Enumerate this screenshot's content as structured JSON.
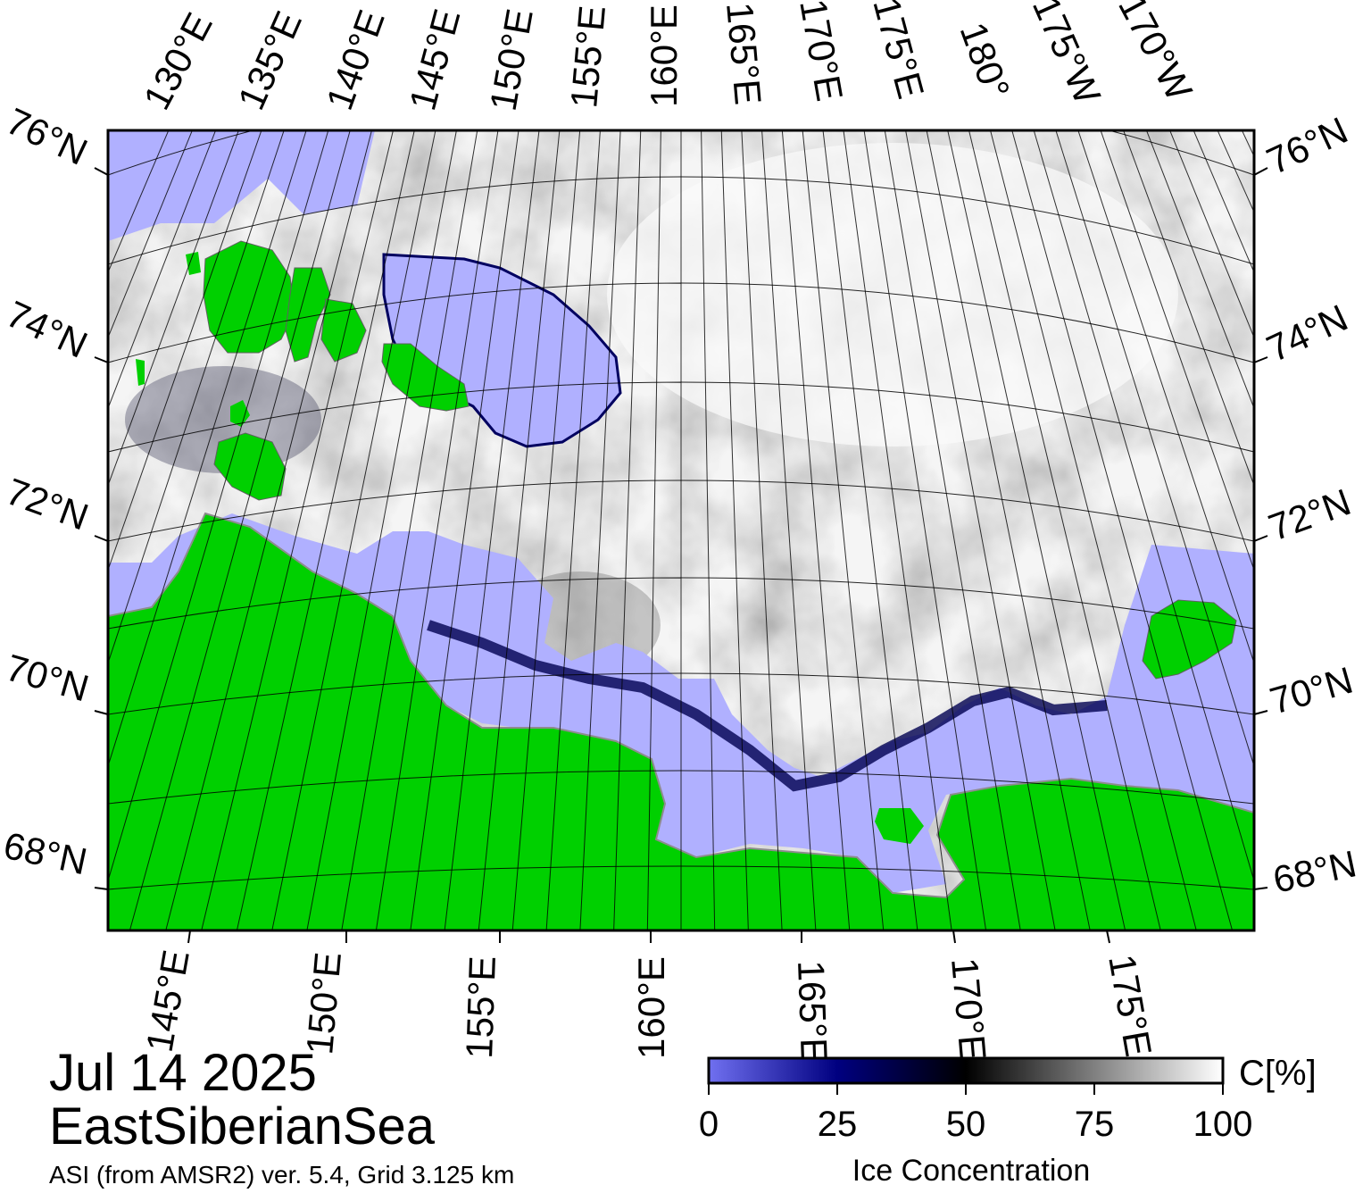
{
  "map": {
    "date": "Jul 14 2025",
    "region": "EastSiberianSea",
    "source": "ASI (from AMSR2) ver. 5.4,  Grid 3.125 km",
    "colors": {
      "land": "#00d000",
      "open_water": "#b0b0ff",
      "frame": "#000000",
      "graticule": "#000000",
      "coast_gray": "#8c8c8c"
    },
    "top_lon_labels": [
      "130°E",
      "135°E",
      "140°E",
      "145°E",
      "150°E",
      "155°E",
      "160°E",
      "165°E",
      "170°E",
      "175°E",
      "180°",
      "175°W",
      "170°W"
    ],
    "bottom_lon_labels": [
      "145°E",
      "150°E",
      "155°E",
      "160°E",
      "165°E",
      "170°E",
      "175°E"
    ],
    "left_lat_labels": [
      "76°N",
      "74°N",
      "72°N",
      "70°N",
      "68°N"
    ],
    "right_lat_labels": [
      "76°N",
      "74°N",
      "72°N",
      "70°N",
      "68°N"
    ]
  },
  "colorbar": {
    "title": "Ice Concentration",
    "unit": "C[%]",
    "ticks": [
      "0",
      "25",
      "50",
      "75",
      "100"
    ],
    "stops": [
      "#7070f0",
      "#000080",
      "#000000",
      "#808080",
      "#ffffff"
    ]
  }
}
